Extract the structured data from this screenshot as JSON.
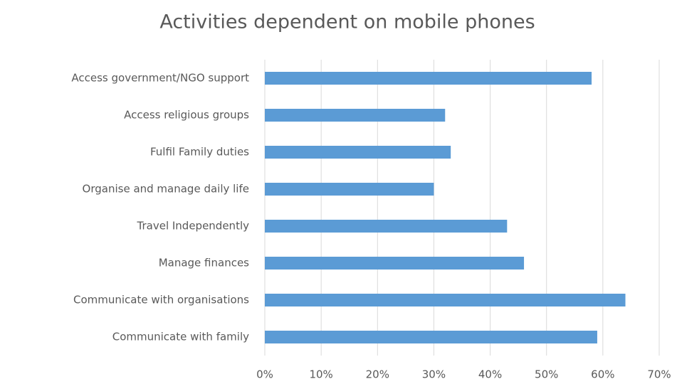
{
  "chart_data": {
    "type": "barh",
    "title": "Activities dependent on mobile phones",
    "categories": [
      "Access government/NGO support",
      "Access religious groups",
      "Fulfil Family duties",
      "Organise and manage daily life",
      "Travel Independently",
      "Manage finances",
      "Communicate with organisations",
      "Communicate with family"
    ],
    "values": [
      58,
      32,
      33,
      30,
      43,
      46,
      64,
      59
    ],
    "color": "#5b9bd5",
    "xlim": [
      0,
      70
    ],
    "xticks": [
      {
        "value": 0,
        "label": "0%"
      },
      {
        "value": 10,
        "label": "10%"
      },
      {
        "value": 20,
        "label": "20%"
      },
      {
        "value": 30,
        "label": "30%"
      },
      {
        "value": 40,
        "label": "40%"
      },
      {
        "value": 50,
        "label": "50%"
      },
      {
        "value": 60,
        "label": "60%"
      },
      {
        "value": 70,
        "label": "70%"
      }
    ],
    "grid": true
  }
}
